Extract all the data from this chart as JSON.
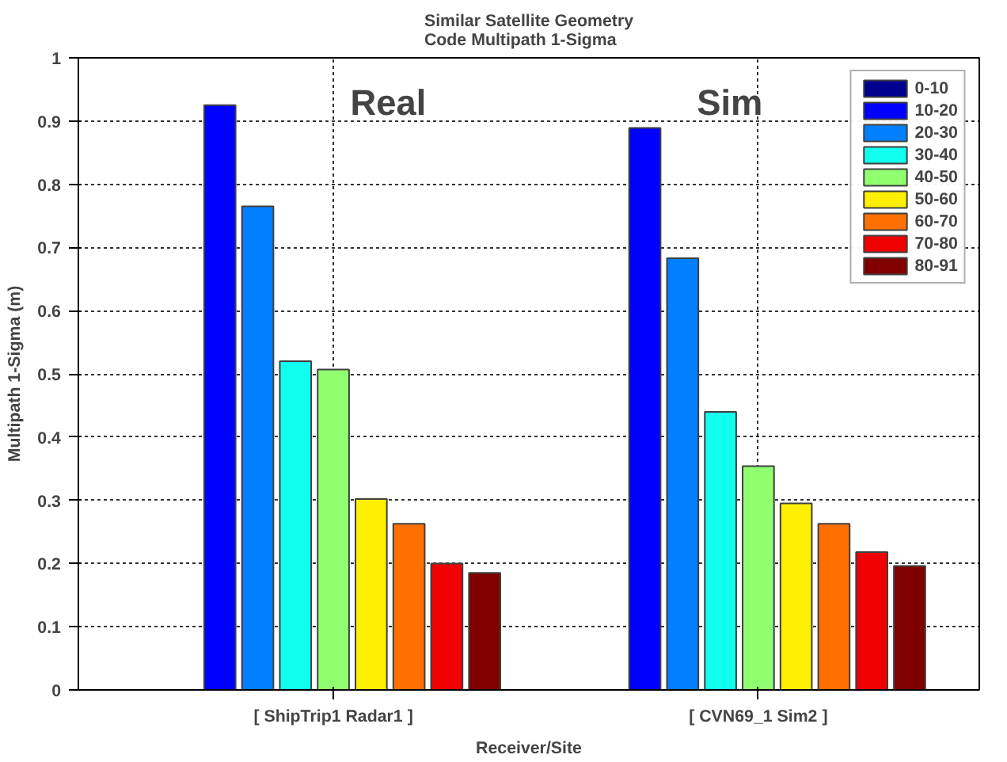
{
  "chart_data": {
    "type": "bar",
    "title": "Similar Satellite Geometry\nCode Multipath 1-Sigma",
    "xlabel": "Receiver/Site",
    "ylabel": "Multipath 1-Sigma (m)",
    "categories": [
      "[ ShipTrip1 Radar1 ]",
      "[ CVN69_1 Sim2 ]"
    ],
    "series": [
      {
        "name": "0-10",
        "color": "#00008f",
        "values": [
          null,
          null
        ]
      },
      {
        "name": "10-20",
        "color": "#0000ff",
        "values": [
          0.925,
          0.889
        ]
      },
      {
        "name": "20-30",
        "color": "#0080ff",
        "values": [
          0.765,
          0.683
        ]
      },
      {
        "name": "30-40",
        "color": "#10ffef",
        "values": [
          0.52,
          0.44
        ]
      },
      {
        "name": "40-50",
        "color": "#90ff70",
        "values": [
          0.507,
          0.354
        ]
      },
      {
        "name": "50-60",
        "color": "#ffef00",
        "values": [
          0.302,
          0.295
        ]
      },
      {
        "name": "60-70",
        "color": "#ff7000",
        "values": [
          0.263,
          0.263
        ]
      },
      {
        "name": "70-80",
        "color": "#f00000",
        "values": [
          0.2,
          0.218
        ]
      },
      {
        "name": "80-91",
        "color": "#800000",
        "values": [
          0.185,
          0.196
        ]
      }
    ],
    "annotations": [
      "Real",
      "Sim"
    ],
    "ylim": [
      0,
      1
    ],
    "yticks": [
      0,
      0.1,
      0.2,
      0.3,
      0.4,
      0.5,
      0.6,
      0.7,
      0.8,
      0.9,
      1
    ],
    "grid": true,
    "legend": "top right"
  }
}
